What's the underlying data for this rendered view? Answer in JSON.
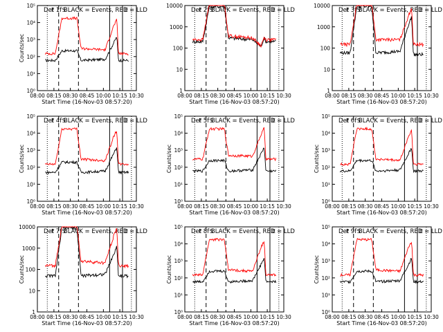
{
  "figure": {
    "colors": {
      "events": "#000000",
      "lld": "#ff0000",
      "axes": "#000000",
      "background": "#ffffff"
    }
  },
  "panel_labels": {
    "flare_marker": "F",
    "saa_marker": "S",
    "eclipse_marker": "E"
  },
  "x_tick_labels": [
    "08:00",
    "08:15",
    "08:30",
    "08:45",
    "10:00",
    "10:15",
    "10:30"
  ],
  "chart_data": [
    {
      "type": "line",
      "title": "Det 1f BLACK = Events, RED = LLD",
      "xlabel": "Start Time (16-Nov-03 08:57:20)",
      "ylabel": "Counts/sec",
      "y_scale": "log",
      "ylim": [
        1,
        100000
      ],
      "y_tick_labels": [
        "10⁰",
        "10¹",
        "10²",
        "10³",
        "10⁴",
        "10⁵"
      ],
      "x_tick_labels": [
        "08:00",
        "08:15",
        "08:30",
        "08:45",
        "10:00",
        "10:15",
        "10:30"
      ],
      "series": [
        {
          "name": "Events",
          "color": "#000000",
          "levels": {
            "pre": 60,
            "flare_peak": 220,
            "mid": 60,
            "post": 70,
            "late_peak": 1500,
            "tail": 60
          }
        },
        {
          "name": "LLD",
          "color": "#ff0000",
          "levels": {
            "pre": 150,
            "flare_peak": 18000,
            "mid": 300,
            "post": 250,
            "late_peak": 15000,
            "tail": 150
          }
        }
      ]
    },
    {
      "type": "line",
      "title": "Det 2f BLACK = Events, RED = LLD",
      "xlabel": "Start Time (16-Nov-03 08:57:20)",
      "ylabel": "",
      "y_scale": "log",
      "ylim": [
        1,
        10000
      ],
      "y_tick_labels": [
        "1",
        "10",
        "100",
        "1000",
        "10000"
      ],
      "x_tick_labels": [
        "08:00",
        "08:15",
        "08:30",
        "08:45",
        "10:00",
        "10:15",
        "10:30"
      ],
      "series": [
        {
          "name": "Events",
          "color": "#000000",
          "levels": {
            "pre": 200,
            "flare_peak": 9000,
            "mid": 300,
            "post": 250,
            "late_peak": 300,
            "tail": 200
          }
        },
        {
          "name": "LLD",
          "color": "#ff0000",
          "levels": {
            "pre": 250,
            "flare_peak": 12000,
            "mid": 380,
            "post": 300,
            "late_peak": 320,
            "tail": 250
          }
        }
      ]
    },
    {
      "type": "line",
      "title": "Det 3f BLACK = Events, RED = LLD",
      "xlabel": "Start Time (16-Nov-03 08:57:20)",
      "ylabel": "",
      "y_scale": "log",
      "ylim": [
        1,
        10000
      ],
      "y_tick_labels": [
        "1",
        "10",
        "100",
        "1000",
        "10000"
      ],
      "x_tick_labels": [
        "08:00",
        "08:15",
        "08:30",
        "08:45",
        "10:00",
        "10:15",
        "10:30"
      ],
      "series": [
        {
          "name": "Events",
          "color": "#000000",
          "levels": {
            "pre": 60,
            "flare_peak": 9000,
            "mid": 60,
            "post": 70,
            "late_peak": 3000,
            "tail": 50
          }
        },
        {
          "name": "LLD",
          "color": "#ff0000",
          "levels": {
            "pre": 150,
            "flare_peak": 12000,
            "mid": 250,
            "post": 250,
            "late_peak": 8000,
            "tail": 150
          }
        }
      ]
    },
    {
      "type": "line",
      "title": "Det 4f BLACK = Events, RED = LLD",
      "xlabel": "Start Time (16-Nov-03 08:57:20)",
      "ylabel": "Counts/sec",
      "y_scale": "log",
      "ylim": [
        1,
        100000
      ],
      "y_tick_labels": [
        "10⁰",
        "10¹",
        "10²",
        "10³",
        "10⁴",
        "10⁵"
      ],
      "x_tick_labels": [
        "08:00",
        "08:15",
        "08:30",
        "08:45",
        "10:00",
        "10:15",
        "10:30"
      ],
      "series": [
        {
          "name": "Events",
          "color": "#000000",
          "levels": {
            "pre": 50,
            "flare_peak": 200,
            "mid": 50,
            "post": 60,
            "late_peak": 1500,
            "tail": 50
          }
        },
        {
          "name": "LLD",
          "color": "#ff0000",
          "levels": {
            "pre": 150,
            "flare_peak": 18000,
            "mid": 300,
            "post": 250,
            "late_peak": 15000,
            "tail": 150
          }
        }
      ]
    },
    {
      "type": "line",
      "title": "Det 5f BLACK = Events, RED = LLD",
      "xlabel": "Start Time (16-Nov-03 08:57:20)",
      "ylabel": "Counts/sec",
      "y_scale": "log",
      "ylim": [
        1,
        100000
      ],
      "y_tick_labels": [
        "10⁰",
        "10¹",
        "10²",
        "10³",
        "10⁴",
        "10⁵"
      ],
      "x_tick_labels": [
        "08:00",
        "08:15",
        "08:30",
        "08:45",
        "10:00",
        "10:15",
        "10:30"
      ],
      "series": [
        {
          "name": "Events",
          "color": "#000000",
          "levels": {
            "pre": 60,
            "flare_peak": 250,
            "mid": 60,
            "post": 70,
            "late_peak": 1500,
            "tail": 60
          }
        },
        {
          "name": "LLD",
          "color": "#ff0000",
          "levels": {
            "pre": 300,
            "flare_peak": 18000,
            "mid": 500,
            "post": 450,
            "late_peak": 20000,
            "tail": 300
          }
        }
      ]
    },
    {
      "type": "line",
      "title": "Det 6f BLACK = Events, RED = LLD",
      "xlabel": "Start Time (16-Nov-03 08:57:20)",
      "ylabel": "Counts/sec",
      "y_scale": "log",
      "ylim": [
        1,
        100000
      ],
      "y_tick_labels": [
        "10⁰",
        "10¹",
        "10²",
        "10³",
        "10⁴",
        "10⁵"
      ],
      "x_tick_labels": [
        "08:00",
        "08:15",
        "08:30",
        "08:45",
        "10:00",
        "10:15",
        "10:30"
      ],
      "series": [
        {
          "name": "Events",
          "color": "#000000",
          "levels": {
            "pre": 60,
            "flare_peak": 250,
            "mid": 60,
            "post": 70,
            "late_peak": 1500,
            "tail": 60
          }
        },
        {
          "name": "LLD",
          "color": "#ff0000",
          "levels": {
            "pre": 150,
            "flare_peak": 18000,
            "mid": 300,
            "post": 250,
            "late_peak": 15000,
            "tail": 150
          }
        }
      ]
    },
    {
      "type": "line",
      "title": "Det 7f BLACK = Events, RED = LLD",
      "xlabel": "Start Time (16-Nov-03 08:57:20)",
      "ylabel": "Counts/sec",
      "y_scale": "log",
      "ylim": [
        1,
        10000
      ],
      "y_tick_labels": [
        "1",
        "10",
        "100",
        "1000",
        "10000"
      ],
      "x_tick_labels": [
        "08:00",
        "08:15",
        "08:30",
        "08:45",
        "10:00",
        "10:15",
        "10:30"
      ],
      "series": [
        {
          "name": "Events",
          "color": "#000000",
          "levels": {
            "pre": 50,
            "flare_peak": 9000,
            "mid": 50,
            "post": 60,
            "late_peak": 1200,
            "tail": 50
          }
        },
        {
          "name": "LLD",
          "color": "#ff0000",
          "levels": {
            "pre": 150,
            "flare_peak": 12000,
            "mid": 250,
            "post": 200,
            "late_peak": 9000,
            "tail": 150
          }
        }
      ]
    },
    {
      "type": "line",
      "title": "Det 8f BLACK = Events, RED = LLD",
      "xlabel": "Start Time (16-Nov-03 08:57:20)",
      "ylabel": "Counts/sec",
      "y_scale": "log",
      "ylim": [
        1,
        100000
      ],
      "y_tick_labels": [
        "10⁰",
        "10¹",
        "10²",
        "10³",
        "10⁴",
        "10⁵"
      ],
      "x_tick_labels": [
        "08:00",
        "08:15",
        "08:30",
        "08:45",
        "10:00",
        "10:15",
        "10:30"
      ],
      "series": [
        {
          "name": "Events",
          "color": "#000000",
          "levels": {
            "pre": 60,
            "flare_peak": 250,
            "mid": 60,
            "post": 70,
            "late_peak": 1500,
            "tail": 60
          }
        },
        {
          "name": "LLD",
          "color": "#ff0000",
          "levels": {
            "pre": 150,
            "flare_peak": 18000,
            "mid": 300,
            "post": 250,
            "late_peak": 15000,
            "tail": 150
          }
        }
      ]
    },
    {
      "type": "line",
      "title": "Det 9f BLACK = Events, RED = LLD",
      "xlabel": "Start Time (16-Nov-03 08:57:20)",
      "ylabel": "Counts/sec",
      "y_scale": "log",
      "ylim": [
        1,
        100000
      ],
      "y_tick_labels": [
        "10⁰",
        "10¹",
        "10²",
        "10³",
        "10⁴",
        "10⁵"
      ],
      "x_tick_labels": [
        "08:00",
        "08:15",
        "08:30",
        "08:45",
        "10:00",
        "10:15",
        "10:30"
      ],
      "series": [
        {
          "name": "Events",
          "color": "#000000",
          "levels": {
            "pre": 60,
            "flare_peak": 250,
            "mid": 60,
            "post": 70,
            "late_peak": 1500,
            "tail": 60
          }
        },
        {
          "name": "LLD",
          "color": "#ff0000",
          "levels": {
            "pre": 150,
            "flare_peak": 18000,
            "mid": 300,
            "post": 250,
            "late_peak": 15000,
            "tail": 150
          }
        }
      ]
    }
  ]
}
